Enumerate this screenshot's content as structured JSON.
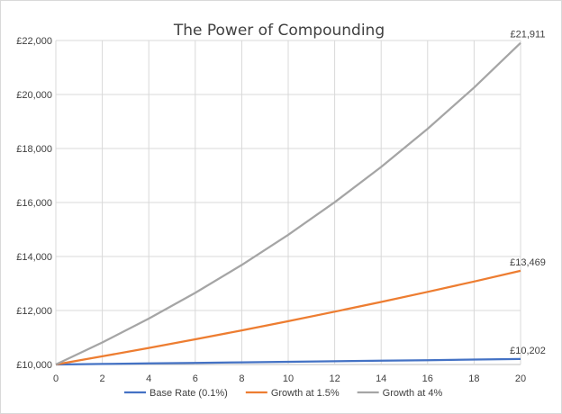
{
  "chart_data": {
    "type": "line",
    "title": "The Power of Compounding",
    "xlabel": "",
    "ylabel": "",
    "x": [
      0,
      2,
      4,
      6,
      8,
      10,
      12,
      14,
      16,
      18,
      20
    ],
    "xlim": [
      0,
      20
    ],
    "ylim": [
      10000,
      22000
    ],
    "y_ticks": [
      10000,
      12000,
      14000,
      16000,
      18000,
      20000,
      22000
    ],
    "y_tick_labels": [
      "£10,000",
      "£12,000",
      "£14,000",
      "£16,000",
      "£18,000",
      "£20,000",
      "£22,000"
    ],
    "x_tick_labels": [
      "0",
      "2",
      "4",
      "6",
      "8",
      "10",
      "12",
      "14",
      "16",
      "18",
      "20"
    ],
    "grid": true,
    "legend_position": "bottom",
    "series": [
      {
        "name": "Base Rate (0.1%)",
        "color": "#4472c4",
        "values": [
          10000,
          10020,
          10040,
          10060,
          10080,
          10100,
          10121,
          10141,
          10161,
          10182,
          10202
        ],
        "end_label": "£10,202"
      },
      {
        "name": "Growth at 1.5%",
        "color": "#ed7d31",
        "values": [
          10000,
          10302,
          10614,
          10934,
          11265,
          11605,
          11956,
          12318,
          12690,
          13073,
          13469
        ],
        "end_label": "£13,469"
      },
      {
        "name": "Growth at 4%",
        "color": "#a5a5a5",
        "values": [
          10000,
          10816,
          11699,
          12653,
          13686,
          14802,
          16010,
          17317,
          18730,
          20258,
          21911
        ],
        "end_label": "£21,911"
      }
    ]
  }
}
